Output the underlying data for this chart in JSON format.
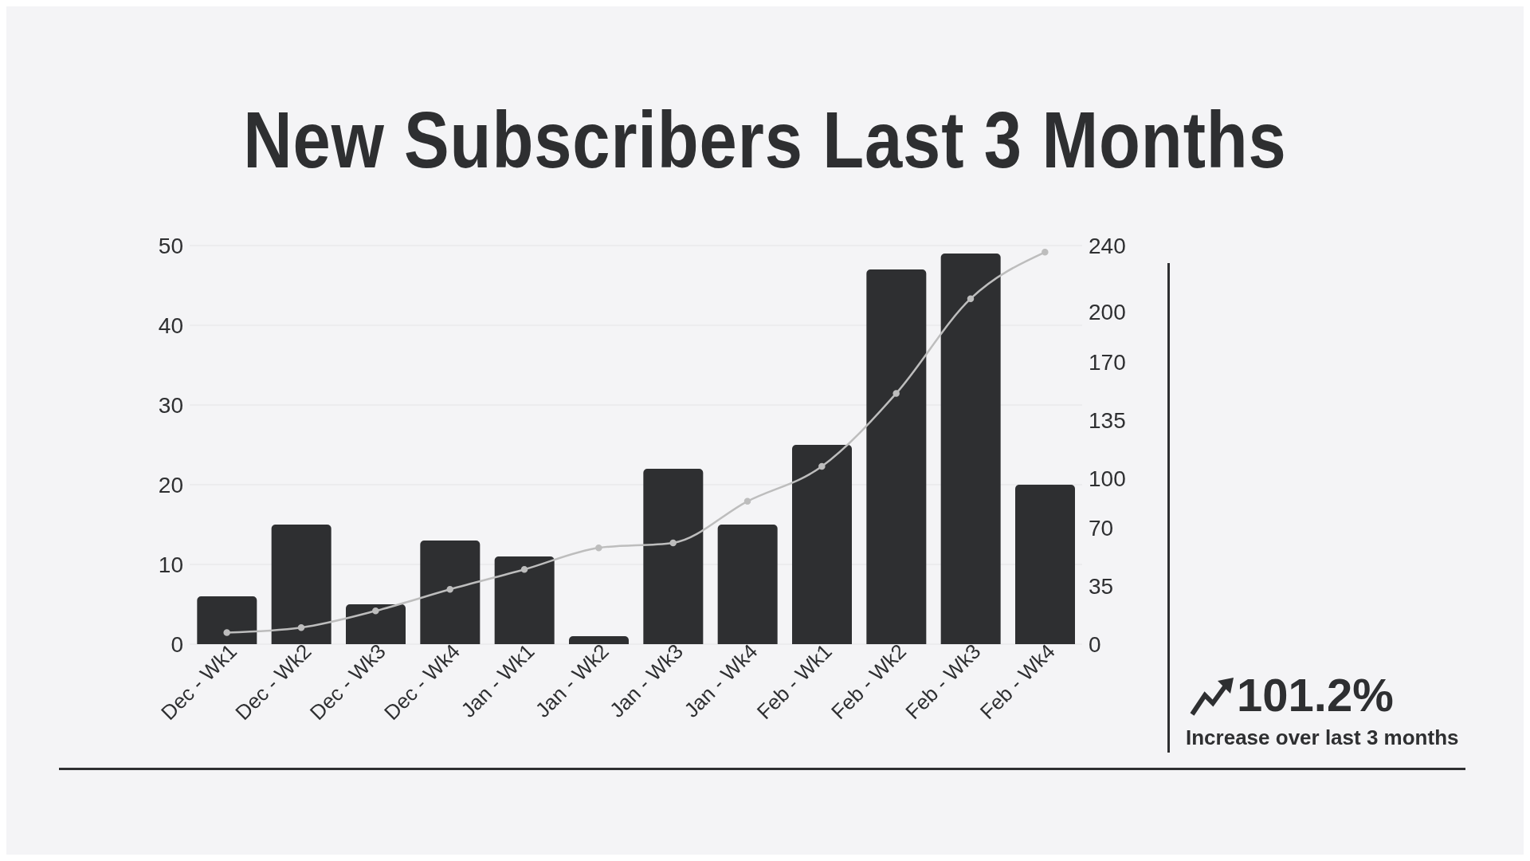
{
  "chart_data": {
    "type": "bar",
    "title": "New Subscribers Last 3 Months",
    "categories": [
      "Dec - Wk1",
      "Dec - Wk2",
      "Dec - Wk3",
      "Dec - Wk4",
      "Jan - Wk1",
      "Jan - Wk2",
      "Jan - Wk3",
      "Jan - Wk4",
      "Feb - Wk1",
      "Feb - Wk2",
      "Feb - Wk3",
      "Feb - Wk4"
    ],
    "series": [
      {
        "color": "#2e2f31",
        "values": [
          6,
          15,
          5,
          13,
          11,
          1,
          22,
          15,
          25,
          47,
          49,
          20
        ]
      },
      {
        "type": "line",
        "axis": "y2",
        "color": "#bdbdbd",
        "values": [
          7,
          10,
          20,
          33,
          45,
          58,
          61,
          86,
          107,
          151,
          208,
          236
        ]
      }
    ],
    "ylim": [
      0,
      50
    ],
    "yticks": [
      0,
      10,
      20,
      30,
      40,
      50
    ],
    "y2lim": [
      0,
      240
    ],
    "y2ticks": [
      0,
      35,
      70,
      100,
      135,
      170,
      200,
      240
    ],
    "grid": "y",
    "marker": "circle",
    "line_style": "solid",
    "annotations": [
      "101.2%",
      "Increase over last 3 months"
    ]
  }
}
